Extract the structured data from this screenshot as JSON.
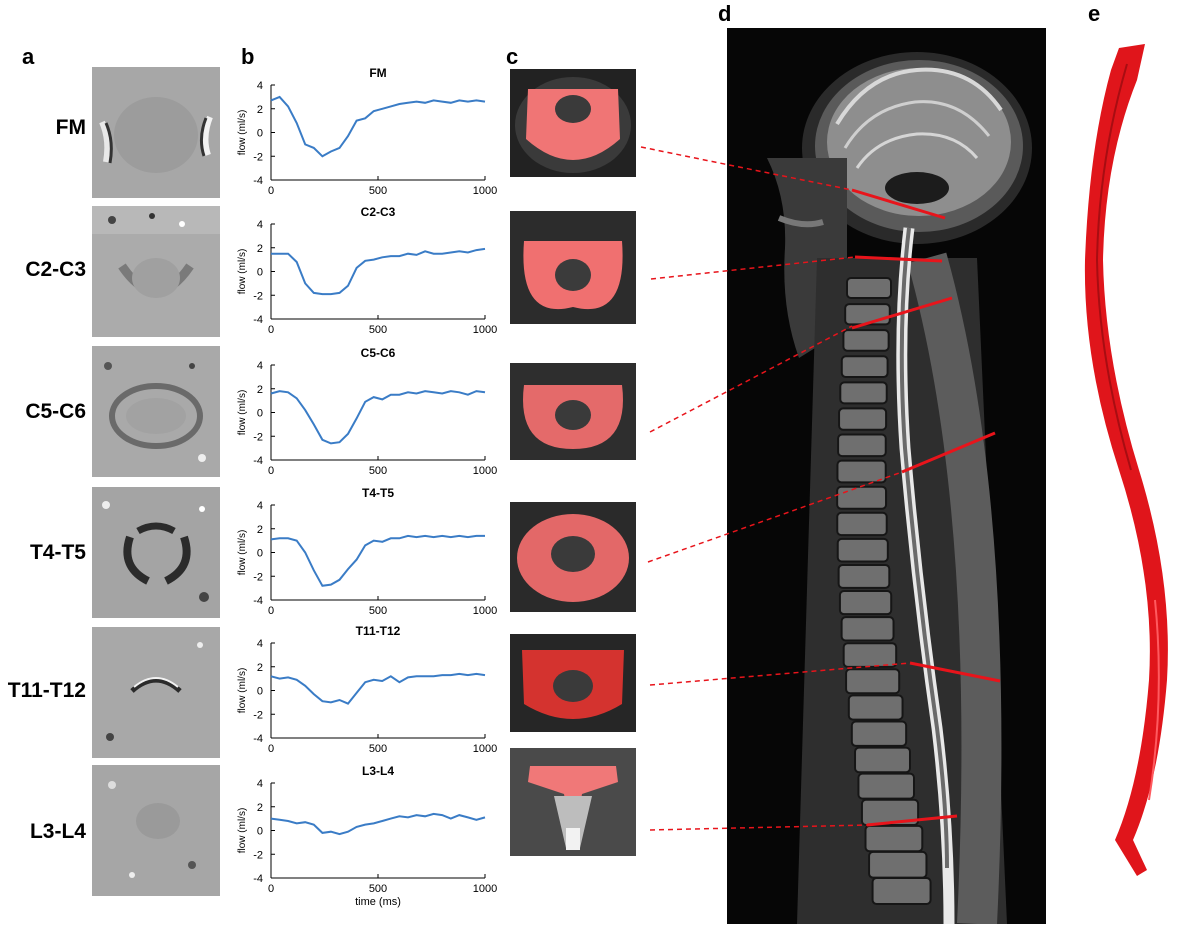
{
  "panels": {
    "a": "a",
    "b": "b",
    "c": "c",
    "d": "d",
    "e": "e"
  },
  "levels": [
    "FM",
    "C2-C3",
    "C5-C6",
    "T4-T5",
    "T11-T12",
    "L3-L4"
  ],
  "colors": {
    "series": "#3a7cc6",
    "overlay": "#f06b6b",
    "spine": "#e0151b",
    "mri_line": "#e8141b"
  },
  "chart_data": {
    "type": "line",
    "ylabel": "flow (ml/s)",
    "xlabel": "time (ms)",
    "xlim": [
      0,
      1000
    ],
    "ylim": [
      -4,
      4
    ],
    "xticks": [
      "0",
      "500",
      "1000"
    ],
    "yticks": [
      "4",
      "2",
      "0",
      "-2",
      "-4"
    ],
    "grid": false,
    "x": [
      0,
      40,
      80,
      120,
      160,
      200,
      240,
      280,
      320,
      360,
      400,
      440,
      480,
      520,
      560,
      600,
      640,
      680,
      720,
      760,
      800,
      840,
      880,
      920,
      960,
      1000
    ],
    "series": [
      {
        "name": "FM",
        "values": [
          2.7,
          3.0,
          2.2,
          0.8,
          -1.0,
          -1.3,
          -2.0,
          -1.6,
          -1.3,
          -0.3,
          1.0,
          1.2,
          1.8,
          2.0,
          2.2,
          2.4,
          2.5,
          2.6,
          2.5,
          2.7,
          2.6,
          2.5,
          2.7,
          2.6,
          2.7,
          2.6
        ]
      },
      {
        "name": "C2-C3",
        "values": [
          1.5,
          1.5,
          1.5,
          0.8,
          -1.0,
          -1.8,
          -1.9,
          -1.9,
          -1.8,
          -1.2,
          0.3,
          0.9,
          1.0,
          1.2,
          1.3,
          1.3,
          1.5,
          1.4,
          1.7,
          1.5,
          1.5,
          1.6,
          1.7,
          1.6,
          1.8,
          1.9
        ]
      },
      {
        "name": "C5-C6",
        "values": [
          1.6,
          1.8,
          1.7,
          1.2,
          0.2,
          -1.0,
          -2.3,
          -2.6,
          -2.5,
          -1.8,
          -0.5,
          0.9,
          1.3,
          1.1,
          1.5,
          1.5,
          1.7,
          1.6,
          1.8,
          1.7,
          1.6,
          1.8,
          1.7,
          1.5,
          1.8,
          1.7
        ]
      },
      {
        "name": "T4-T5",
        "values": [
          1.1,
          1.2,
          1.2,
          1.0,
          0.0,
          -1.5,
          -2.8,
          -2.7,
          -2.3,
          -1.4,
          -0.6,
          0.6,
          1.0,
          0.9,
          1.2,
          1.2,
          1.4,
          1.3,
          1.4,
          1.3,
          1.4,
          1.3,
          1.4,
          1.3,
          1.4,
          1.4
        ]
      },
      {
        "name": "T11-T12",
        "values": [
          1.2,
          1.0,
          1.1,
          0.9,
          0.4,
          -0.3,
          -0.9,
          -1.0,
          -0.8,
          -1.1,
          -0.2,
          0.7,
          0.9,
          0.8,
          1.2,
          0.7,
          1.1,
          1.2,
          1.2,
          1.2,
          1.3,
          1.3,
          1.4,
          1.3,
          1.4,
          1.3
        ]
      },
      {
        "name": "L3-L4",
        "values": [
          1.0,
          0.9,
          0.8,
          0.6,
          0.7,
          0.5,
          -0.2,
          -0.1,
          -0.3,
          -0.1,
          0.3,
          0.5,
          0.6,
          0.8,
          1.0,
          1.2,
          1.1,
          1.3,
          1.2,
          1.4,
          1.3,
          1.0,
          1.3,
          1.1,
          0.9,
          1.1
        ]
      }
    ]
  }
}
